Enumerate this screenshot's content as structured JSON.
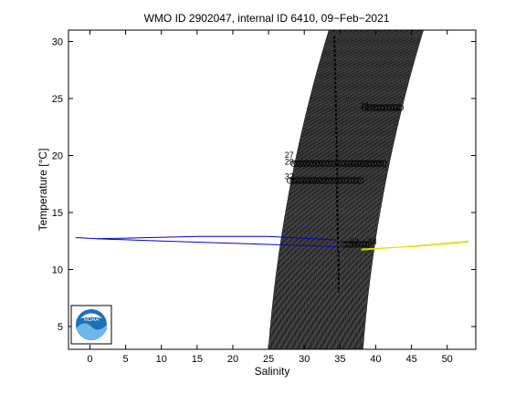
{
  "chart_data": {
    "type": "scatter",
    "title": "WMO ID 2902047, internal ID 6410, 09−Feb−2021",
    "xlabel": "Salinity",
    "ylabel": "Temperature [°C]",
    "xlim": [
      -3,
      54
    ],
    "ylim": [
      3,
      31
    ],
    "xticks": [
      0,
      5,
      10,
      15,
      20,
      25,
      30,
      35,
      40,
      45,
      50
    ],
    "yticks": [
      5,
      10,
      15,
      20,
      25,
      30
    ],
    "grid": false,
    "logo_text": "NOAA",
    "series": [
      {
        "color": "#0000cc",
        "points": [
          [
            -2,
            12.8
          ],
          [
            1,
            12.7
          ],
          [
            10,
            12.5
          ],
          [
            20,
            12.3
          ],
          [
            30,
            12.1
          ],
          [
            34.5,
            12.0
          ]
        ]
      },
      {
        "color": "#0000cc",
        "points": [
          [
            1,
            12.7
          ],
          [
            15,
            12.9
          ],
          [
            25,
            12.9
          ],
          [
            34.5,
            12.6
          ]
        ]
      },
      {
        "color": "#e0e000",
        "points": [
          [
            38,
            11.8
          ],
          [
            45,
            12.0
          ],
          [
            53,
            12.4
          ]
        ]
      },
      {
        "color": "#e0e000",
        "points": [
          [
            38,
            11.7
          ],
          [
            46,
            12.1
          ],
          [
            53,
            12.5
          ]
        ]
      },
      {
        "color": "#000000",
        "points": [
          [
            34.2,
            30.5
          ],
          [
            34.3,
            28
          ],
          [
            34.4,
            25
          ],
          [
            34.5,
            22
          ],
          [
            34.6,
            19
          ],
          [
            34.6,
            16
          ],
          [
            34.7,
            13
          ],
          [
            34.8,
            10
          ],
          [
            34.8,
            8
          ]
        ]
      }
    ],
    "density_contours": {
      "color": "#000000",
      "sigma_from": 18,
      "sigma_to": 30,
      "step": 0.1
    },
    "annotations": [
      {
        "text": "27",
        "x": 27.9,
        "y": 20.0
      },
      {
        "text": "29",
        "x": 27.9,
        "y": 19.4
      },
      {
        "text": "32",
        "x": 27.9,
        "y": 18.1
      },
      {
        "text": "33",
        "x": 38.4,
        "y": 24.3
      },
      {
        "text": "52",
        "x": 37.0,
        "y": 12.4
      },
      {
        "text": "38",
        "x": 39.5,
        "y": 12.4
      }
    ],
    "marker_rows": [
      {
        "y": 24.2,
        "x_from": 38.5,
        "x_to": 43.5
      },
      {
        "y": 19.3,
        "x_from": 28.5,
        "x_to": 41.5
      },
      {
        "y": 17.8,
        "x_from": 28.0,
        "x_to": 38.0
      },
      {
        "y": 12.2,
        "x_from": 35.5,
        "x_to": 39.5
      }
    ]
  }
}
